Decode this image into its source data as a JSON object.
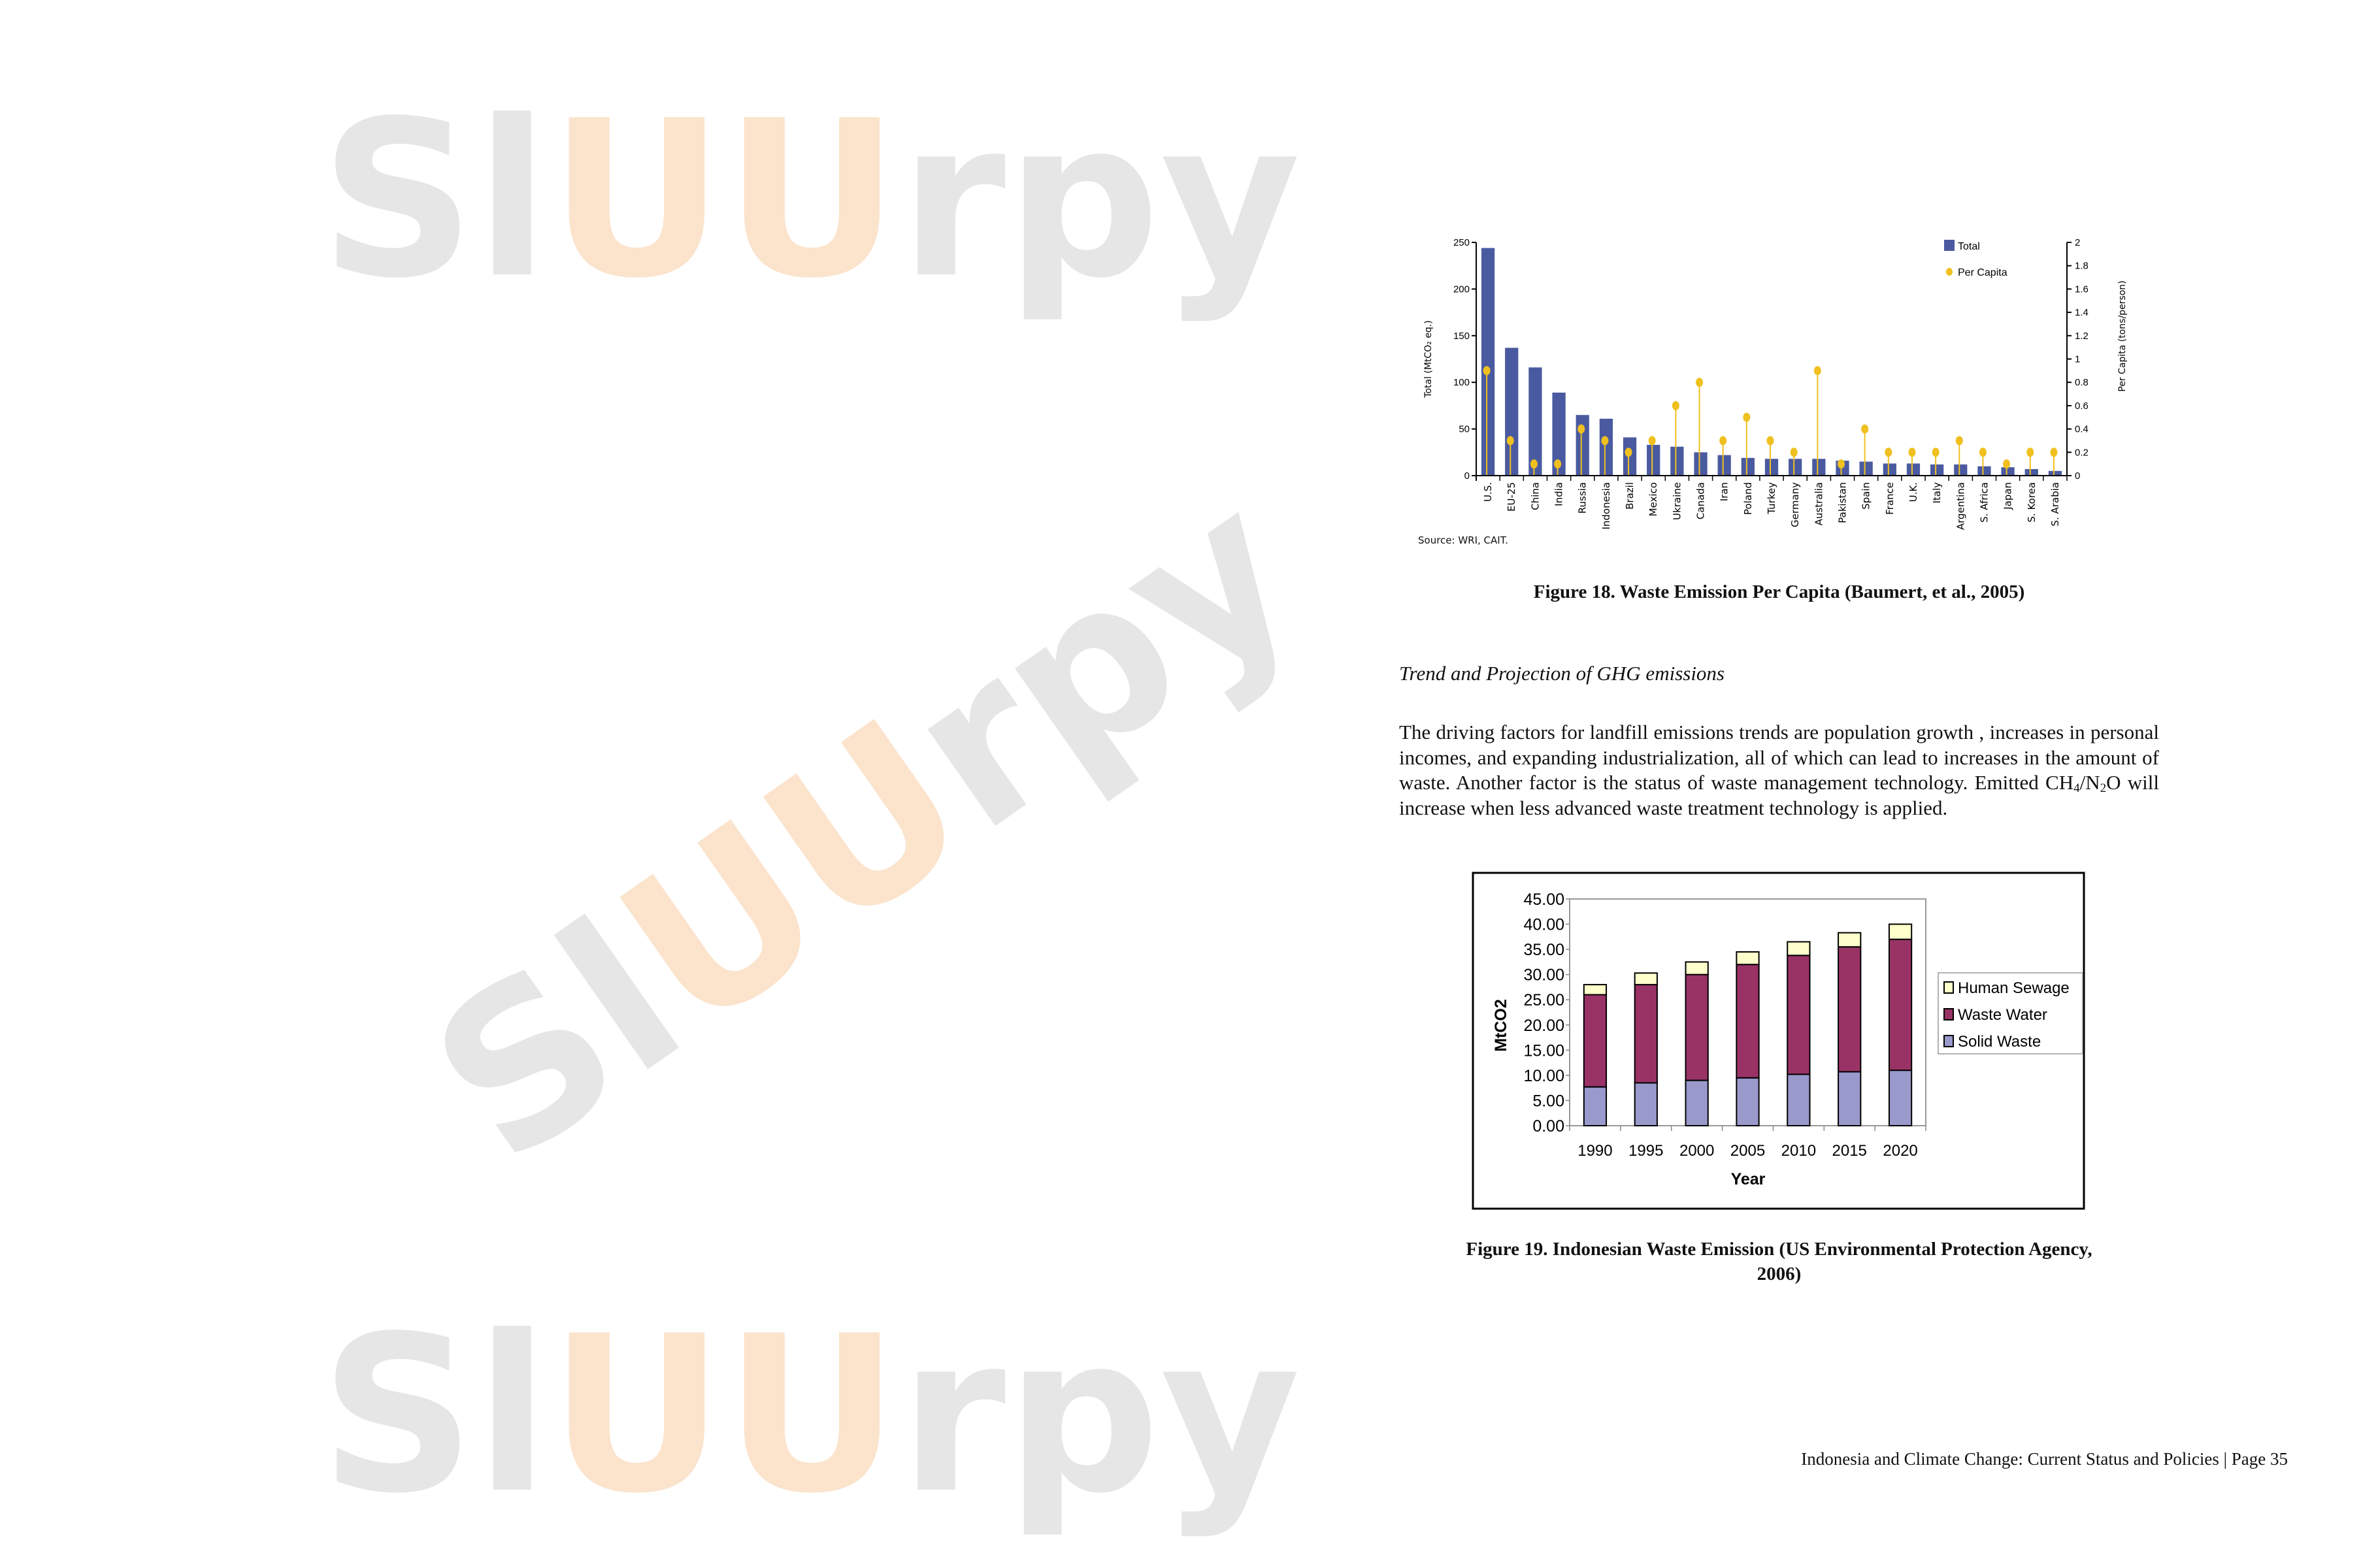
{
  "watermark": {
    "left": "Sl",
    "mid": "UU",
    "right": "rpy",
    "gray": "#e6e6e6",
    "orange": "#fbe3cc"
  },
  "figure18": {
    "caption": "Figure 18. Waste Emission Per Capita (Baumert, et al., 2005)",
    "source": "Source: WRI, CAIT."
  },
  "section_heading": "Trend and Projection of GHG emissions",
  "paragraph": {
    "part1": "The driving factors for landfill emissions trends are population growth , increases in personal incomes, and expanding industrialization, all of which can lead to increases in the amount of waste. Another factor is the status of waste management technology. Emitted CH",
    "sub1": "4",
    "part2": "/N",
    "sub2": "2",
    "part3": "O will increase when less advanced waste treatment technology is applied."
  },
  "figure19": {
    "caption_line1": "Figure 19. Indonesian Waste Emission (US Environmental Protection Agency,",
    "caption_line2": "2006)"
  },
  "footer": "Indonesia and Climate Change: Current Status and Policies | Page 35",
  "chart_data": [
    {
      "type": "bar",
      "categories": [
        "U.S.",
        "EU-25",
        "China",
        "India",
        "Russia",
        "Indonesia",
        "Brazil",
        "Mexico",
        "Ukraine",
        "Canada",
        "Iran",
        "Poland",
        "Turkey",
        "Germany",
        "Australia",
        "Pakistan",
        "Spain",
        "France",
        "U.K.",
        "Italy",
        "Argentina",
        "S. Africa",
        "Japan",
        "S. Korea",
        "S. Arabia"
      ],
      "series": [
        {
          "name": "Total",
          "axis": "left",
          "mark": "bar",
          "color": "#4a5aa0",
          "values": [
            244,
            137,
            116,
            89,
            65,
            61,
            41,
            33,
            31,
            25,
            22,
            19,
            18,
            18,
            18,
            16,
            15,
            13,
            13,
            12,
            12,
            10,
            9,
            7,
            5
          ]
        },
        {
          "name": "Per Capita",
          "axis": "right",
          "mark": "lollipop",
          "color": "#f0c020",
          "values": [
            0.9,
            0.3,
            0.1,
            0.1,
            0.4,
            0.3,
            0.2,
            0.3,
            0.6,
            0.8,
            0.3,
            0.5,
            0.3,
            0.2,
            0.9,
            0.1,
            0.4,
            0.2,
            0.2,
            0.2,
            0.3,
            0.2,
            0.1,
            0.2,
            0.2
          ]
        }
      ],
      "ylabel": "Total (MtCO₂ eq.)",
      "y2label": "Per Capita (tons/person)",
      "ylim": [
        0,
        250
      ],
      "yticks": [
        "0",
        "50",
        "100",
        "150",
        "200",
        "250"
      ],
      "y2lim": [
        0,
        2
      ],
      "y2ticks": [
        "0",
        "0.2",
        "0.4",
        "0.6",
        "0.8",
        "1",
        "1.2",
        "1.4",
        "1.6",
        "1.8",
        "2"
      ],
      "legend": "top-right",
      "grid": false
    },
    {
      "type": "bar",
      "stacked": true,
      "categories": [
        "1990",
        "1995",
        "2000",
        "2005",
        "2010",
        "2015",
        "2020"
      ],
      "series": [
        {
          "name": "Solid Waste",
          "color": "#9999cc",
          "values": [
            7.7,
            8.5,
            9.0,
            9.5,
            10.2,
            10.7,
            11.0
          ]
        },
        {
          "name": "Waste Water",
          "color": "#993366",
          "values": [
            18.3,
            19.5,
            21.0,
            22.5,
            23.6,
            24.8,
            26.0
          ]
        },
        {
          "name": "Human Sewage",
          "color": "#ffffcc",
          "values": [
            2.0,
            2.3,
            2.5,
            2.5,
            2.7,
            2.8,
            3.0
          ]
        }
      ],
      "xlabel": "Year",
      "ylabel": "MtCO2",
      "ylim": [
        0,
        45
      ],
      "yticks": [
        "0.00",
        "5.00",
        "10.00",
        "15.00",
        "20.00",
        "25.00",
        "30.00",
        "35.00",
        "40.00",
        "45.00"
      ],
      "legend": "right",
      "grid": false
    }
  ]
}
